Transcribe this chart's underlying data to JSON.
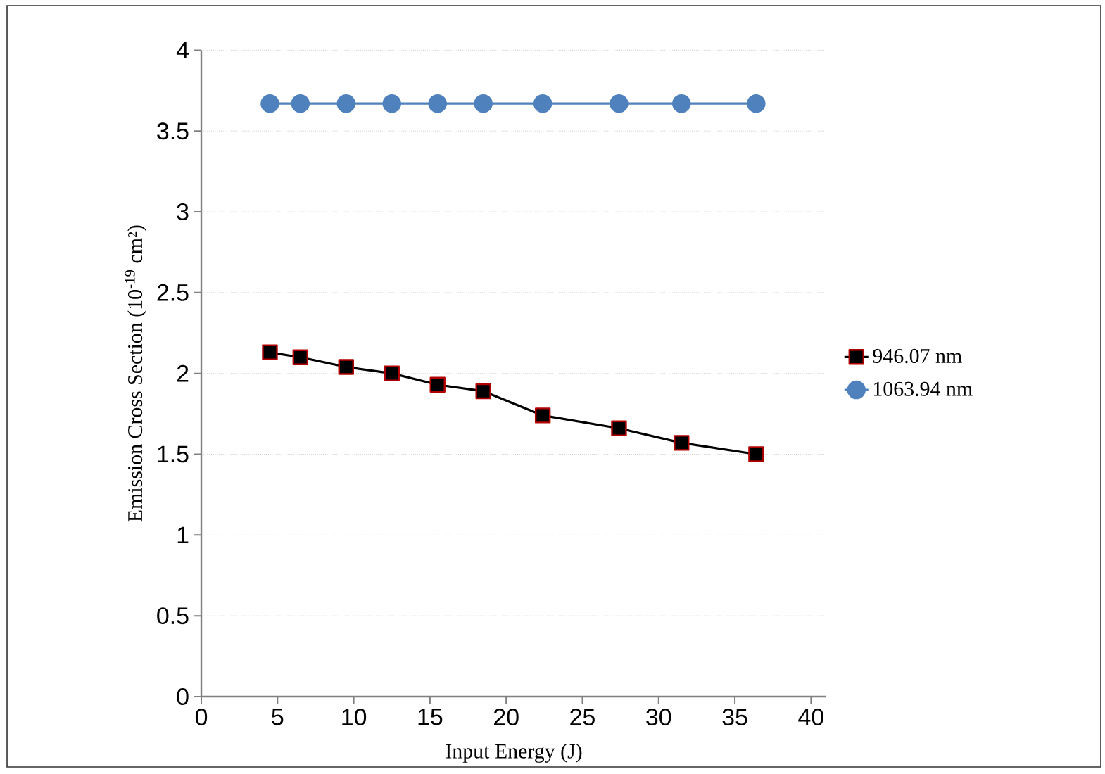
{
  "chart_data": {
    "type": "line",
    "xlabel": "Input Energy (J)",
    "ylabel": "Emission Cross Section (10$^{-19}$ cm²)",
    "xlim": [
      0,
      41
    ],
    "xticks": [
      0,
      5,
      10,
      15,
      20,
      25,
      30,
      35,
      40
    ],
    "ylim": [
      0,
      4
    ],
    "yticks": [
      0,
      0.5,
      1,
      1.5,
      2,
      2.5,
      3,
      3.5,
      4
    ],
    "grid": "y",
    "legend": "right",
    "series": [
      {
        "name": "946.07 nm",
        "color": "#000000",
        "marker": "square",
        "x": [
          4.5,
          6.5,
          9.5,
          12.5,
          15.5,
          18.5,
          22.4,
          27.4,
          31.5,
          36.4
        ],
        "values": [
          2.13,
          2.1,
          2.04,
          2.0,
          1.93,
          1.89,
          1.74,
          1.66,
          1.57,
          1.5
        ]
      },
      {
        "name": "1063.94 nm",
        "color": "#4f81bd",
        "marker": "circle",
        "x": [
          4.5,
          6.5,
          9.5,
          12.5,
          15.5,
          18.5,
          22.4,
          27.4,
          31.5,
          36.4
        ],
        "values": [
          3.67,
          3.67,
          3.67,
          3.67,
          3.67,
          3.67,
          3.67,
          3.67,
          3.67,
          3.67
        ]
      }
    ]
  }
}
